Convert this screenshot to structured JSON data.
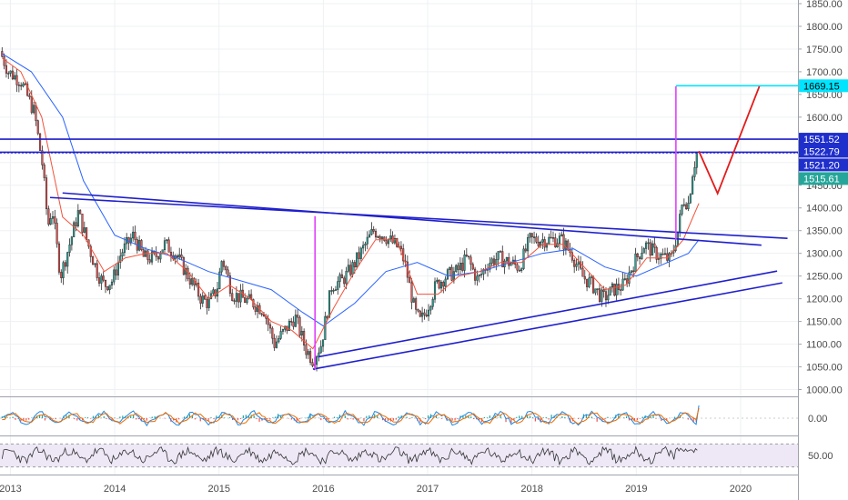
{
  "colors": {
    "background": "#ffffff",
    "grid": "#eef0f3",
    "axis_text": "#4a4a4a",
    "candle_up": "#26a69a",
    "candle_down": "#ef5350",
    "candle_outline": "#2b2b2b",
    "ma_fast": "#f4513a",
    "ma_slow": "#2962ff",
    "trendline": "#1f1fcc",
    "measure_line": "#e040fb",
    "target_line": "#00e5ff",
    "projection": "#e31b1b",
    "rsi_band": "#ede7f6",
    "rsi_line": "#333333",
    "macd_signal": "#ef6c00",
    "macd_line": "#1e88e5",
    "price_tag_blue": "#1f2fcc",
    "price_tag_cyan": "#00e5ff",
    "price_tag_green": "#26a69a"
  },
  "chart_data": [
    {
      "type": "candlestick",
      "title": "",
      "xlabel": "",
      "ylabel": "",
      "x_ticks": [
        "2013",
        "2014",
        "2015",
        "2016",
        "2017",
        "2018",
        "2019",
        "2020"
      ],
      "y_ticks": [
        "1000.00",
        "1050.00",
        "1100.00",
        "1150.00",
        "1200.00",
        "1250.00",
        "1300.00",
        "1350.00",
        "1400.00",
        "1450.00",
        "1500.00",
        "1550.00",
        "1600.00",
        "1650.00",
        "1700.00",
        "1750.00",
        "1800.00",
        "1850.00"
      ],
      "ylim": [
        985,
        1858
      ],
      "xlim": [
        2012.9,
        2020.55
      ],
      "grid": true,
      "price_path": [
        [
          2012.92,
          1745
        ],
        [
          2013.0,
          1700
        ],
        [
          2013.12,
          1680
        ],
        [
          2013.25,
          1610
        ],
        [
          2013.33,
          1490
        ],
        [
          2013.38,
          1360
        ],
        [
          2013.42,
          1400
        ],
        [
          2013.5,
          1250
        ],
        [
          2013.6,
          1330
        ],
        [
          2013.67,
          1390
        ],
        [
          2013.75,
          1330
        ],
        [
          2013.85,
          1260
        ],
        [
          2013.92,
          1230
        ],
        [
          2014.0,
          1240
        ],
        [
          2014.08,
          1300
        ],
        [
          2014.2,
          1340
        ],
        [
          2014.3,
          1290
        ],
        [
          2014.4,
          1290
        ],
        [
          2014.5,
          1320
        ],
        [
          2014.6,
          1300
        ],
        [
          2014.75,
          1240
        ],
        [
          2014.85,
          1200
        ],
        [
          2014.92,
          1190
        ],
        [
          2015.0,
          1220
        ],
        [
          2015.05,
          1290
        ],
        [
          2015.15,
          1210
        ],
        [
          2015.25,
          1200
        ],
        [
          2015.35,
          1190
        ],
        [
          2015.45,
          1175
        ],
        [
          2015.55,
          1100
        ],
        [
          2015.65,
          1130
        ],
        [
          2015.75,
          1160
        ],
        [
          2015.85,
          1090
        ],
        [
          2015.92,
          1065
        ],
        [
          2016.0,
          1100
        ],
        [
          2016.1,
          1230
        ],
        [
          2016.2,
          1240
        ],
        [
          2016.3,
          1270
        ],
        [
          2016.4,
          1310
        ],
        [
          2016.5,
          1350
        ],
        [
          2016.6,
          1340
        ],
        [
          2016.7,
          1320
        ],
        [
          2016.75,
          1310
        ],
        [
          2016.8,
          1280
        ],
        [
          2016.9,
          1170
        ],
        [
          2016.95,
          1150
        ],
        [
          2017.0,
          1170
        ],
        [
          2017.1,
          1230
        ],
        [
          2017.2,
          1250
        ],
        [
          2017.3,
          1260
        ],
        [
          2017.4,
          1290
        ],
        [
          2017.5,
          1240
        ],
        [
          2017.6,
          1280
        ],
        [
          2017.7,
          1290
        ],
        [
          2017.8,
          1280
        ],
        [
          2017.9,
          1270
        ],
        [
          2018.0,
          1330
        ],
        [
          2018.1,
          1330
        ],
        [
          2018.2,
          1330
        ],
        [
          2018.3,
          1330
        ],
        [
          2018.4,
          1300
        ],
        [
          2018.5,
          1250
        ],
        [
          2018.6,
          1230
        ],
        [
          2018.7,
          1200
        ],
        [
          2018.8,
          1220
        ],
        [
          2018.9,
          1230
        ],
        [
          2019.0,
          1280
        ],
        [
          2019.1,
          1320
        ],
        [
          2019.2,
          1300
        ],
        [
          2019.3,
          1290
        ],
        [
          2019.35,
          1285
        ],
        [
          2019.42,
          1350
        ],
        [
          2019.47,
          1420
        ],
        [
          2019.52,
          1410
        ],
        [
          2019.56,
          1480
        ],
        [
          2019.6,
          1520
        ]
      ],
      "moving_average_fast": [
        [
          2012.92,
          1730
        ],
        [
          2013.1,
          1700
        ],
        [
          2013.3,
          1600
        ],
        [
          2013.5,
          1380
        ],
        [
          2013.7,
          1340
        ],
        [
          2013.9,
          1260
        ],
        [
          2014.1,
          1290
        ],
        [
          2014.3,
          1300
        ],
        [
          2014.5,
          1300
        ],
        [
          2014.7,
          1260
        ],
        [
          2014.9,
          1200
        ],
        [
          2015.1,
          1230
        ],
        [
          2015.3,
          1200
        ],
        [
          2015.5,
          1150
        ],
        [
          2015.7,
          1130
        ],
        [
          2015.9,
          1090
        ],
        [
          2016.1,
          1180
        ],
        [
          2016.3,
          1260
        ],
        [
          2016.5,
          1330
        ],
        [
          2016.7,
          1330
        ],
        [
          2016.9,
          1210
        ],
        [
          2017.1,
          1210
        ],
        [
          2017.3,
          1250
        ],
        [
          2017.5,
          1260
        ],
        [
          2017.7,
          1280
        ],
        [
          2017.9,
          1280
        ],
        [
          2018.1,
          1320
        ],
        [
          2018.3,
          1320
        ],
        [
          2018.5,
          1270
        ],
        [
          2018.7,
          1220
        ],
        [
          2018.9,
          1230
        ],
        [
          2019.1,
          1290
        ],
        [
          2019.3,
          1290
        ],
        [
          2019.45,
          1330
        ],
        [
          2019.6,
          1410
        ]
      ],
      "moving_average_slow": [
        [
          2012.92,
          1740
        ],
        [
          2013.2,
          1700
        ],
        [
          2013.5,
          1600
        ],
        [
          2013.7,
          1460
        ],
        [
          2014.0,
          1340
        ],
        [
          2014.3,
          1310
        ],
        [
          2014.6,
          1290
        ],
        [
          2014.9,
          1260
        ],
        [
          2015.2,
          1240
        ],
        [
          2015.5,
          1220
        ],
        [
          2015.8,
          1170
        ],
        [
          2016.0,
          1140
        ],
        [
          2016.3,
          1190
        ],
        [
          2016.6,
          1260
        ],
        [
          2016.9,
          1280
        ],
        [
          2017.2,
          1250
        ],
        [
          2017.5,
          1260
        ],
        [
          2017.8,
          1280
        ],
        [
          2018.1,
          1300
        ],
        [
          2018.4,
          1310
        ],
        [
          2018.7,
          1270
        ],
        [
          2019.0,
          1250
        ],
        [
          2019.3,
          1280
        ],
        [
          2019.5,
          1300
        ],
        [
          2019.6,
          1330
        ]
      ],
      "annotations": {
        "horizontal_levels": [
          1551.52,
          1522.79,
          1521.2,
          1669.15
        ],
        "trendlines": [
          {
            "from": [
              2013.38,
              1423
            ],
            "to": [
              2020.45,
              1333
            ]
          },
          {
            "from": [
              2013.5,
              1433
            ],
            "to": [
              2020.2,
              1318
            ]
          },
          {
            "from": [
              2015.9,
              1045
            ],
            "to": [
              2020.4,
              1235
            ]
          },
          {
            "from": [
              2015.95,
              1072
            ],
            "to": [
              2020.35,
              1261
            ]
          }
        ],
        "vertical_measures": [
          {
            "x": 2015.92,
            "y_from": 1045,
            "y_to": 1382
          },
          {
            "x": 2019.38,
            "y_from": 1330,
            "y_to": 1668
          }
        ],
        "projection": [
          [
            2019.6,
            1525
          ],
          [
            2019.78,
            1432
          ],
          [
            2020.18,
            1668
          ]
        ]
      },
      "price_labels": [
        {
          "value": "1669.15",
          "color": "#00e5ff",
          "text_color": "#000000"
        },
        {
          "value": "1551.52",
          "color": "#1f2fcc",
          "text_color": "#ffffff"
        },
        {
          "value": "1522.79",
          "color": "#1f2fcc",
          "text_color": "#ffffff"
        },
        {
          "value": "1521.20",
          "color": "#1f2fcc",
          "text_color": "#ffffff"
        },
        {
          "value": "1515.61",
          "color": "#26a69a",
          "text_color": "#ffffff"
        }
      ]
    },
    {
      "type": "line",
      "title": "",
      "y_ticks": [
        "0.00"
      ],
      "ylim": [
        -1,
        1
      ],
      "series": [
        {
          "values": [
            0.1,
            -0.2,
            0.3,
            -0.1,
            0.2,
            -0.3,
            0.1,
            0.4,
            -0.2,
            0.0
          ]
        },
        {
          "values": [
            0.0,
            -0.1,
            0.2,
            0.0,
            0.1,
            -0.2,
            0.0,
            0.3,
            -0.1,
            0.6
          ]
        }
      ]
    },
    {
      "type": "line",
      "title": "",
      "y_ticks": [
        "50.00"
      ],
      "ylim": [
        20,
        80
      ],
      "series": [
        {
          "values": [
            55,
            45,
            60,
            40,
            58,
            48,
            62,
            42,
            55,
            50,
            65,
            70
          ]
        }
      ]
    }
  ]
}
